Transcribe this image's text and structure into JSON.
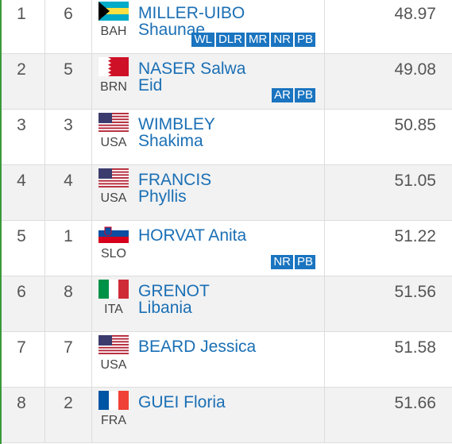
{
  "table": {
    "rows": [
      {
        "rank": "1",
        "lane": "6",
        "country": "BAH",
        "name": [
          "MILLER-UIBO",
          "Shaunae"
        ],
        "records": [
          "WL",
          "DLR",
          "MR",
          "NR",
          "PB"
        ],
        "time": "48.97"
      },
      {
        "rank": "2",
        "lane": "5",
        "country": "BRN",
        "name": [
          "NASER Salwa",
          "Eid"
        ],
        "records": [
          "AR",
          "PB"
        ],
        "time": "49.08"
      },
      {
        "rank": "3",
        "lane": "3",
        "country": "USA",
        "name": [
          "WIMBLEY",
          "Shakima"
        ],
        "records": [],
        "time": "50.85"
      },
      {
        "rank": "4",
        "lane": "4",
        "country": "USA",
        "name": [
          "FRANCIS",
          "Phyllis"
        ],
        "records": [],
        "time": "51.05"
      },
      {
        "rank": "5",
        "lane": "1",
        "country": "SLO",
        "name": [
          "HORVAT Anita"
        ],
        "records": [
          "NR",
          "PB"
        ],
        "time": "51.22"
      },
      {
        "rank": "6",
        "lane": "8",
        "country": "ITA",
        "name": [
          "GRENOT",
          "Libania"
        ],
        "records": [],
        "time": "51.56"
      },
      {
        "rank": "7",
        "lane": "7",
        "country": "USA",
        "name": [
          "BEARD Jessica"
        ],
        "records": [],
        "time": "51.58"
      },
      {
        "rank": "8",
        "lane": "2",
        "country": "FRA",
        "name": [
          "GUEI Floria"
        ],
        "records": [],
        "time": "51.66"
      }
    ]
  }
}
